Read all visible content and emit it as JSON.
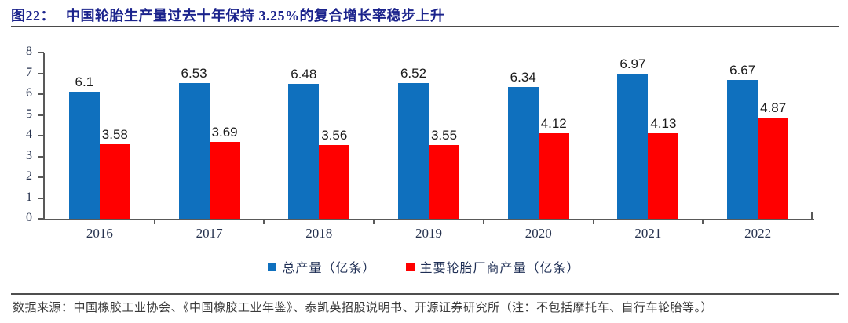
{
  "header": {
    "label": "图22：",
    "title": "中国轮胎生产量过去十年保持 3.25%的复合增长率稳步上升"
  },
  "chart_data": {
    "type": "bar",
    "title": "图22：中国轮胎生产量过去十年保持 3.25%的复合增长率稳步上升",
    "categories": [
      "2016",
      "2017",
      "2018",
      "2019",
      "2020",
      "2021",
      "2022"
    ],
    "series": [
      {
        "name": "总产量（亿条）",
        "color": "#0F70BE",
        "values": [
          6.1,
          6.53,
          6.48,
          6.52,
          6.34,
          6.97,
          6.67
        ],
        "labels": [
          "6.1",
          "6.53",
          "6.48",
          "6.52",
          "6.34",
          "6.97",
          "6.67"
        ]
      },
      {
        "name": "主要轮胎厂商产量（亿条）",
        "color": "#FF0000",
        "values": [
          3.58,
          3.69,
          3.56,
          3.55,
          4.12,
          4.13,
          4.87
        ],
        "labels": [
          "3.58",
          "3.69",
          "3.56",
          "3.55",
          "4.12",
          "4.13",
          "4.87"
        ]
      }
    ],
    "xlabel": "",
    "ylabel": "",
    "ylim": [
      0,
      8
    ],
    "yticks": [
      0,
      1,
      2,
      3,
      4,
      5,
      6,
      7,
      8
    ],
    "grid": false,
    "legend_position": "bottom",
    "data_labels": true
  },
  "footer": {
    "source": "数据来源：中国橡胶工业协会、《中国橡胶工业年鉴》、泰凯英招股说明书、开源证券研究所（注：不包括摩托车、自行车轮胎等。）"
  },
  "colors": {
    "bar_blue": "#0F70BE",
    "bar_red": "#FF0000",
    "title_navy": "#1B238C",
    "axis_gray": "#595959",
    "tick_label": "#26324E",
    "footer_text": "#3A3A3A"
  }
}
